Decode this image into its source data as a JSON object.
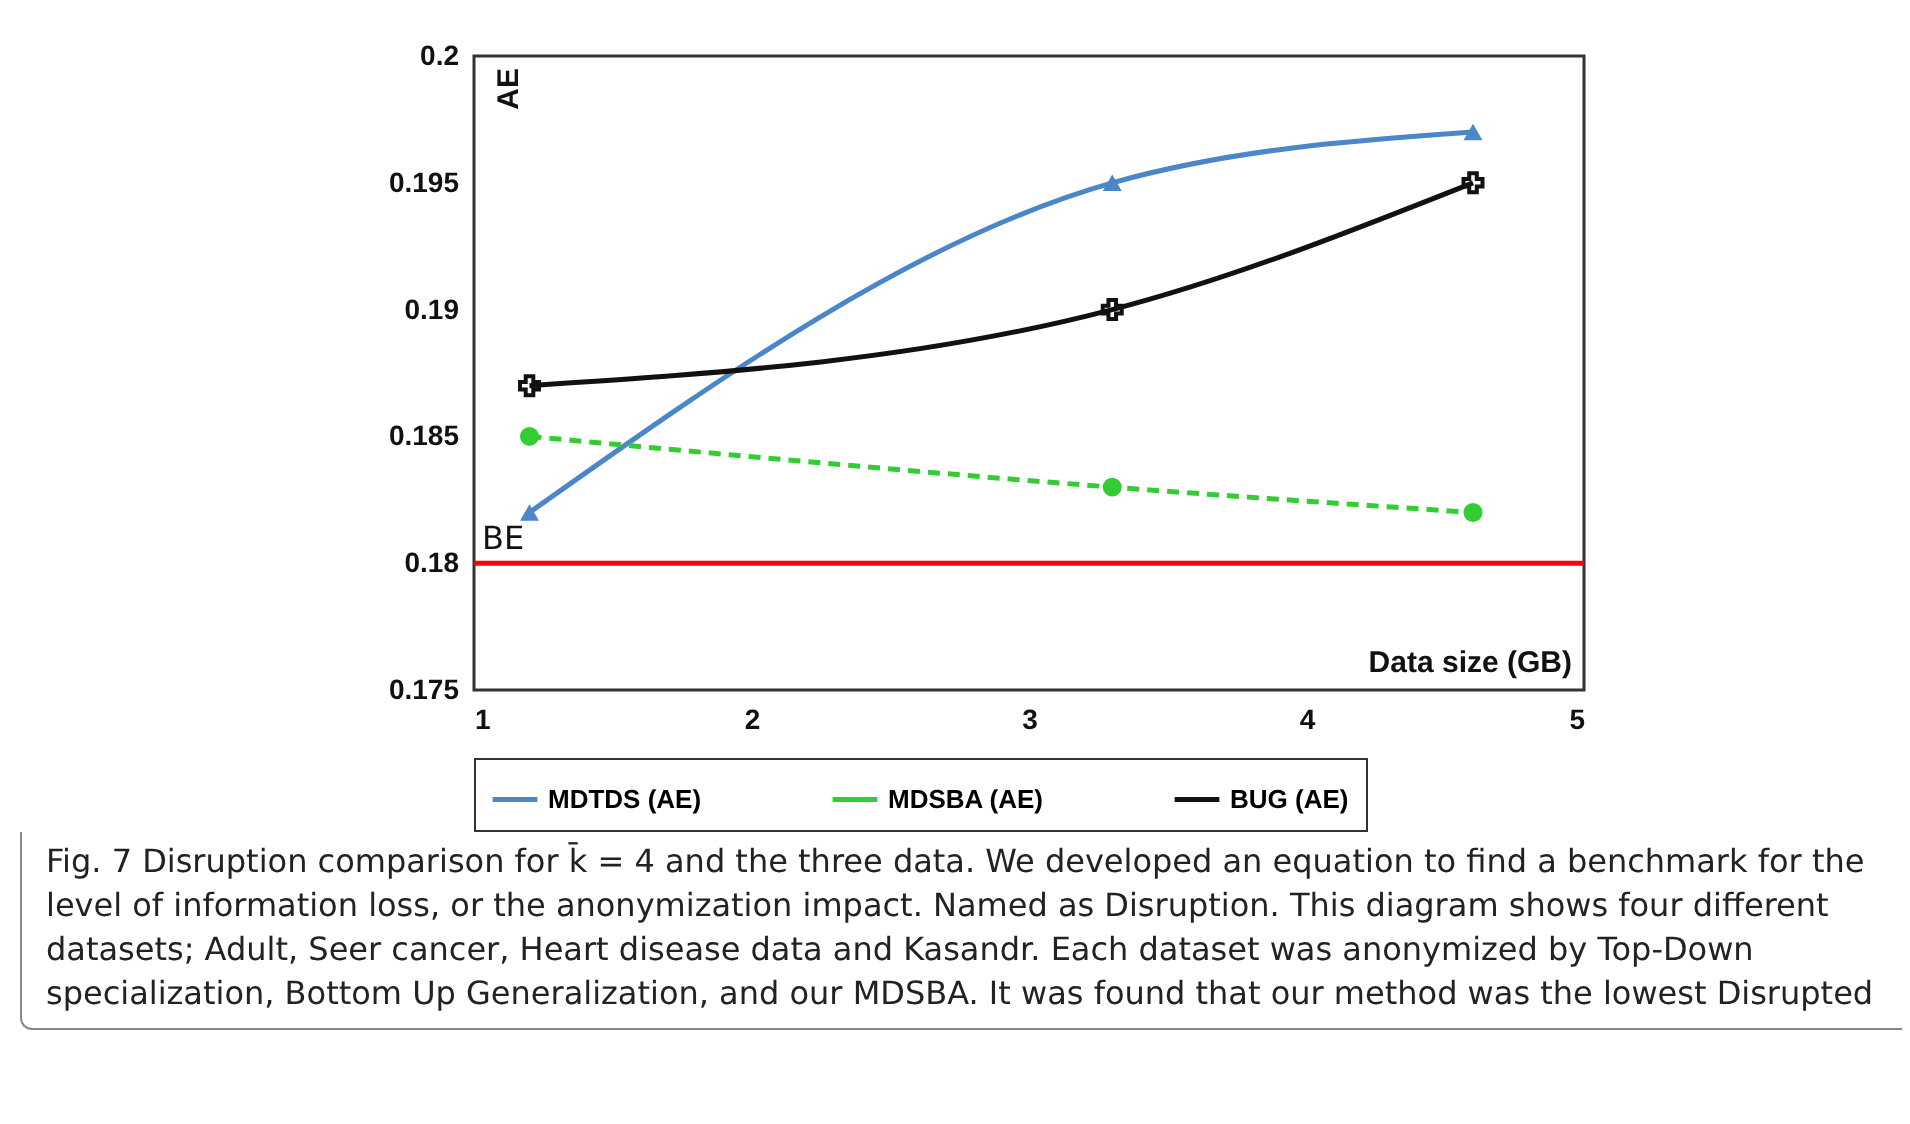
{
  "chart_data": {
    "type": "line",
    "xlabel": "Data size (GB)",
    "ylabel": "AE",
    "x": [
      1.2,
      3.3,
      4.6
    ],
    "series": [
      {
        "name": "MDTDS (AE)",
        "color": "#4a86c8",
        "values": [
          0.182,
          0.195,
          0.197
        ],
        "marker": "triangle"
      },
      {
        "name": "MDSBA (AE)",
        "color": "#33cc33",
        "values": [
          0.185,
          0.183,
          0.182
        ],
        "marker": "circle",
        "line_style": "dashed"
      },
      {
        "name": "BUG (AE)",
        "color": "#111111",
        "values": [
          0.187,
          0.19,
          0.195
        ],
        "marker": "cross"
      }
    ],
    "xlim": [
      1,
      5
    ],
    "xticks": [
      1,
      2,
      3,
      4,
      5
    ],
    "ylim": [
      0.175,
      0.2
    ],
    "yticks": [
      0.175,
      0.18,
      0.185,
      0.19,
      0.195,
      0.2
    ],
    "grid": false,
    "legend": "bottom",
    "ref_lines": [
      {
        "axis": "y",
        "value": 0.18,
        "label": "BE",
        "color": "#ff0000"
      }
    ],
    "annotations": [
      "Fig. 7 Disruption comparison for k̄ = 4 and the three data. We developed an equation to find a benchmark for the level of information loss, or the anonymization impact. Named as Disruption. This diagram shows four different datasets; Adult, Seer cancer, Heart disease data and Kasandr. Each dataset was anonymized by Top-Down specialization, Bottom Up Generalization, and our MDSBA. It was found that our method was the lowest Disrupted"
    ]
  }
}
